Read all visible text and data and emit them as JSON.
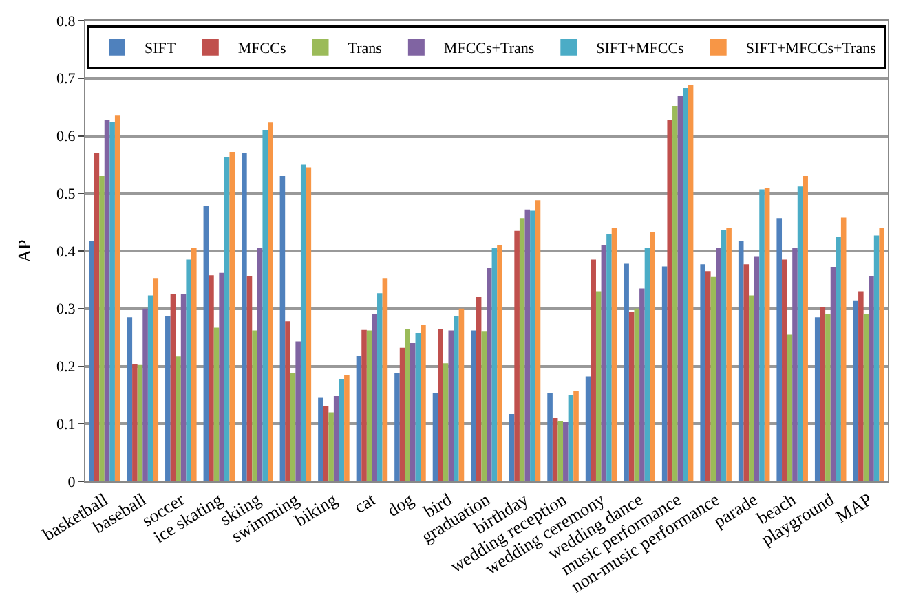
{
  "chart_data": {
    "type": "bar",
    "ylabel": "AP",
    "categories": [
      "basketball",
      "baseball",
      "soccer",
      "ice skating",
      "skiing",
      "swimming",
      "biking",
      "cat",
      "dog",
      "bird",
      "graduation",
      "birthday",
      "wedding reception",
      "wedding ceremony",
      "wedding dance",
      "music performance",
      "non-music performance",
      "parade",
      "beach",
      "playground",
      "MAP"
    ],
    "series": [
      {
        "name": "SIFT",
        "color": "#4f81bd",
        "values": [
          0.418,
          0.285,
          0.287,
          0.478,
          0.57,
          0.53,
          0.145,
          0.218,
          0.188,
          0.153,
          0.262,
          0.117,
          0.153,
          0.182,
          0.378,
          0.373,
          0.377,
          0.418,
          0.457,
          0.285,
          0.313
        ]
      },
      {
        "name": "MFCCs",
        "color": "#c0504d",
        "values": [
          0.57,
          0.203,
          0.325,
          0.358,
          0.357,
          0.278,
          0.13,
          0.263,
          0.232,
          0.265,
          0.32,
          0.435,
          0.11,
          0.385,
          0.295,
          0.627,
          0.365,
          0.377,
          0.385,
          0.302,
          0.33
        ]
      },
      {
        "name": "Trans",
        "color": "#9bbb59",
        "values": [
          0.53,
          0.202,
          0.217,
          0.267,
          0.262,
          0.188,
          0.12,
          0.262,
          0.265,
          0.205,
          0.26,
          0.457,
          0.105,
          0.33,
          0.3,
          0.652,
          0.355,
          0.323,
          0.255,
          0.29,
          0.29
        ]
      },
      {
        "name": "MFCCs+Trans",
        "color": "#8064a2",
        "values": [
          0.628,
          0.3,
          0.325,
          0.362,
          0.405,
          0.243,
          0.148,
          0.29,
          0.24,
          0.262,
          0.37,
          0.472,
          0.103,
          0.41,
          0.335,
          0.67,
          0.405,
          0.39,
          0.405,
          0.372,
          0.357
        ]
      },
      {
        "name": "SIFT+MFCCs",
        "color": "#4bacc6",
        "values": [
          0.624,
          0.323,
          0.385,
          0.563,
          0.61,
          0.55,
          0.178,
          0.327,
          0.258,
          0.287,
          0.405,
          0.47,
          0.15,
          0.43,
          0.405,
          0.683,
          0.437,
          0.507,
          0.512,
          0.425,
          0.427
        ]
      },
      {
        "name": "SIFT+MFCCs+Trans",
        "color": "#f79646",
        "values": [
          0.636,
          0.352,
          0.405,
          0.572,
          0.623,
          0.545,
          0.185,
          0.352,
          0.272,
          0.3,
          0.41,
          0.488,
          0.157,
          0.44,
          0.433,
          0.688,
          0.44,
          0.51,
          0.53,
          0.458,
          0.44
        ]
      }
    ],
    "ylim": [
      0,
      0.8
    ],
    "yticks": [
      0,
      0.1,
      0.2,
      0.3,
      0.4,
      0.5,
      0.6,
      0.7,
      0.8
    ],
    "grid": "y",
    "legend": "top"
  }
}
